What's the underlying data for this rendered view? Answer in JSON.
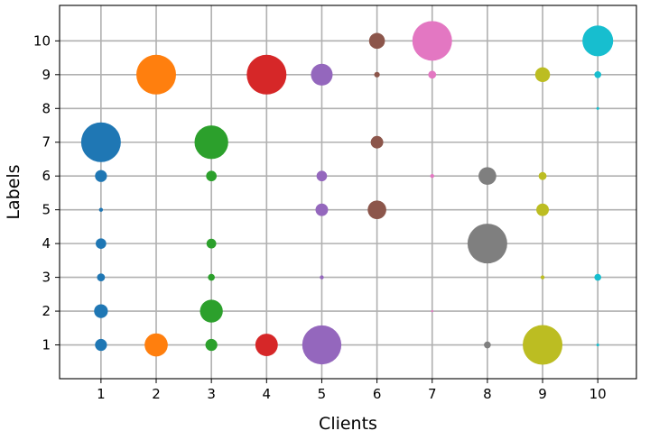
{
  "chart_data": {
    "type": "scatter",
    "title": "",
    "xlabel": "Clients",
    "ylabel": "Labels",
    "xlim": [
      0.25,
      10.7
    ],
    "ylim": [
      0,
      11.05
    ],
    "xticks": [
      1,
      2,
      3,
      4,
      5,
      6,
      7,
      8,
      9,
      10
    ],
    "yticks": [
      1,
      2,
      3,
      4,
      5,
      6,
      7,
      8,
      9,
      10
    ],
    "grid": true,
    "legend": "none",
    "size_encoding": "relative sample count per client and label (0-1)",
    "series": [
      {
        "color": "#1f77b4",
        "points": [
          {
            "x": 1,
            "y": 7,
            "size": 1.0
          },
          {
            "x": 1,
            "y": 6,
            "size": 0.09
          },
          {
            "x": 1,
            "y": 5,
            "size": 0.01
          },
          {
            "x": 1,
            "y": 4,
            "size": 0.07
          },
          {
            "x": 1,
            "y": 3,
            "size": 0.04
          },
          {
            "x": 1,
            "y": 2,
            "size": 0.12
          },
          {
            "x": 1,
            "y": 1,
            "size": 0.09
          }
        ]
      },
      {
        "color": "#ff7f0e",
        "points": [
          {
            "x": 2,
            "y": 9,
            "size": 1.0
          },
          {
            "x": 2,
            "y": 1,
            "size": 0.34
          }
        ]
      },
      {
        "color": "#2ca02c",
        "points": [
          {
            "x": 3,
            "y": 7,
            "size": 0.72
          },
          {
            "x": 3,
            "y": 6,
            "size": 0.07
          },
          {
            "x": 3,
            "y": 4,
            "size": 0.06
          },
          {
            "x": 3,
            "y": 3,
            "size": 0.03
          },
          {
            "x": 3,
            "y": 2,
            "size": 0.33
          },
          {
            "x": 3,
            "y": 1,
            "size": 0.09
          }
        ]
      },
      {
        "color": "#d62728",
        "points": [
          {
            "x": 4,
            "y": 9,
            "size": 1.0
          },
          {
            "x": 4,
            "y": 1,
            "size": 0.32
          }
        ]
      },
      {
        "color": "#9467bd",
        "points": [
          {
            "x": 5,
            "y": 9,
            "size": 0.3
          },
          {
            "x": 5,
            "y": 6,
            "size": 0.07
          },
          {
            "x": 5,
            "y": 5,
            "size": 0.1
          },
          {
            "x": 5,
            "y": 3,
            "size": 0.01
          },
          {
            "x": 5,
            "y": 1,
            "size": 0.97
          }
        ]
      },
      {
        "color": "#8c564b",
        "points": [
          {
            "x": 6,
            "y": 10,
            "size": 0.16
          },
          {
            "x": 6,
            "y": 9,
            "size": 0.02
          },
          {
            "x": 6,
            "y": 7,
            "size": 0.1
          },
          {
            "x": 6,
            "y": 5,
            "size": 0.22
          }
        ]
      },
      {
        "color": "#e377c2",
        "points": [
          {
            "x": 7,
            "y": 10,
            "size": 1.0
          },
          {
            "x": 7,
            "y": 9,
            "size": 0.04
          },
          {
            "x": 7,
            "y": 6,
            "size": 0.01
          },
          {
            "x": 7,
            "y": 2,
            "size": 0.003
          }
        ]
      },
      {
        "color": "#7f7f7f",
        "points": [
          {
            "x": 8,
            "y": 6,
            "size": 0.2
          },
          {
            "x": 8,
            "y": 4,
            "size": 1.0
          },
          {
            "x": 8,
            "y": 1,
            "size": 0.03
          }
        ]
      },
      {
        "color": "#bcbd22",
        "points": [
          {
            "x": 9,
            "y": 9,
            "size": 0.14
          },
          {
            "x": 9,
            "y": 6,
            "size": 0.04
          },
          {
            "x": 9,
            "y": 5,
            "size": 0.1
          },
          {
            "x": 9,
            "y": 3,
            "size": 0.01
          },
          {
            "x": 9,
            "y": 1,
            "size": 1.0
          }
        ]
      },
      {
        "color": "#17becf",
        "points": [
          {
            "x": 10,
            "y": 10,
            "size": 0.6
          },
          {
            "x": 10,
            "y": 9,
            "size": 0.03
          },
          {
            "x": 10,
            "y": 8,
            "size": 0.005
          },
          {
            "x": 10,
            "y": 3,
            "size": 0.03
          },
          {
            "x": 10,
            "y": 1,
            "size": 0.005
          }
        ]
      }
    ]
  }
}
